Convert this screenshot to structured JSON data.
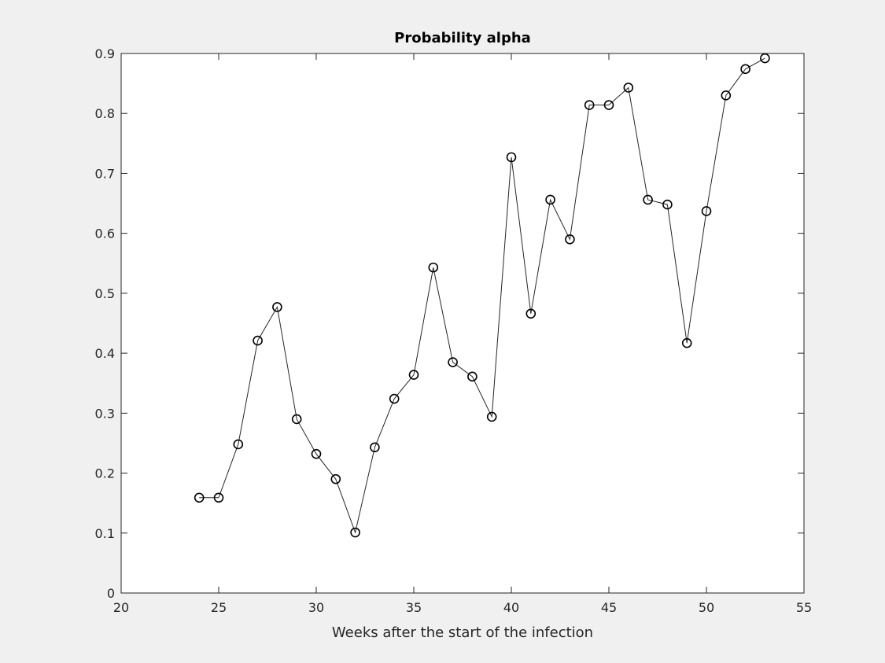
{
  "chart_data": {
    "type": "line",
    "title": "Probability alpha",
    "xlabel": "Weeks after the start of the infection",
    "ylabel": "",
    "xlim": [
      20,
      55
    ],
    "ylim": [
      0,
      0.9
    ],
    "xticks": [
      20,
      25,
      30,
      35,
      40,
      45,
      50,
      55
    ],
    "yticks": [
      0,
      0.1,
      0.2,
      0.3,
      0.4,
      0.5,
      0.6,
      0.7,
      0.8,
      0.9
    ],
    "xtick_labels": [
      "20",
      "25",
      "30",
      "35",
      "40",
      "45",
      "50",
      "55"
    ],
    "ytick_labels": [
      "0",
      "0.1",
      "0.2",
      "0.3",
      "0.4",
      "0.5",
      "0.6",
      "0.7",
      "0.8",
      "0.9"
    ],
    "grid": false,
    "marker": "circle",
    "series": [
      {
        "x": [
          24,
          25,
          26,
          27,
          28,
          29,
          30,
          31,
          32,
          33,
          34,
          35,
          36,
          37,
          38,
          39,
          40,
          41,
          42,
          43,
          44,
          45,
          46,
          47,
          48,
          49,
          50,
          51,
          52,
          53
        ],
        "y": [
          0.159,
          0.159,
          0.248,
          0.421,
          0.477,
          0.29,
          0.232,
          0.19,
          0.101,
          0.243,
          0.324,
          0.364,
          0.543,
          0.385,
          0.361,
          0.294,
          0.727,
          0.466,
          0.656,
          0.59,
          0.814,
          0.814,
          0.843,
          0.656,
          0.648,
          0.417,
          0.637,
          0.83,
          0.874,
          0.892
        ],
        "color": "#262626"
      }
    ]
  },
  "colors": {
    "figure_background": "#f0f0f0",
    "axes_background": "#ffffff",
    "axes_edge": "#262626",
    "line": "#262626"
  }
}
